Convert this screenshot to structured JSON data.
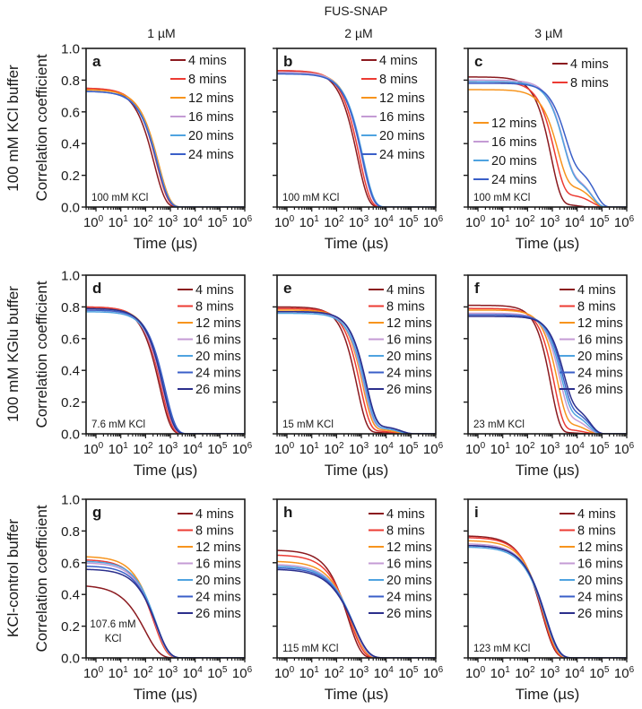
{
  "figure": {
    "title": "FUS-SNAP",
    "columns": [
      "1 µM",
      "2 µM",
      "3 µM"
    ],
    "rows": [
      "100 mM KCl buffer",
      "100 mM KGlu buffer",
      "KCl-control buffer"
    ]
  },
  "colors": {
    "4 mins": "#8b1a1f",
    "8 mins": "#ec3b33",
    "12 mins": "#f7941d",
    "16 mins": "#c49bd4",
    "20 mins": "#4fa3e0",
    "24 mins": "#3a5fc8",
    "26 mins": "#2b2f8c"
  },
  "chart_data": [
    {
      "panel": "a",
      "type": "line",
      "annotation": [
        "100 mM KCl"
      ],
      "xlabel": "Time (µs)",
      "ylabel": "Correlation coefficient",
      "xscale": "log",
      "xlim": [
        0.4,
        1000000
      ],
      "ylim": [
        0,
        1
      ],
      "grid": false,
      "yticks": [
        "0.0",
        "0.2",
        "0.4",
        "0.6",
        "0.8",
        "1.0"
      ],
      "xticks": [
        {
          "base": "10",
          "exp": "0"
        },
        {
          "base": "10",
          "exp": "1"
        },
        {
          "base": "10",
          "exp": "2"
        },
        {
          "base": "10",
          "exp": "3"
        },
        {
          "base": "10",
          "exp": "4"
        },
        {
          "base": "10",
          "exp": "5"
        },
        {
          "base": "10",
          "exp": "6"
        }
      ],
      "legend": "top-right",
      "series": [
        {
          "name": "4 mins",
          "plateau": 0.75,
          "half_decay_us": 150,
          "stretch": 0.95
        },
        {
          "name": "8 mins",
          "plateau": 0.75,
          "half_decay_us": 190,
          "stretch": 0.95
        },
        {
          "name": "12 mins",
          "plateau": 0.74,
          "half_decay_us": 230,
          "stretch": 0.95
        },
        {
          "name": "16 mins",
          "plateau": 0.73,
          "half_decay_us": 215,
          "stretch": 0.95
        },
        {
          "name": "20 mins",
          "plateau": 0.73,
          "half_decay_us": 215,
          "stretch": 0.95
        },
        {
          "name": "24 mins",
          "plateau": 0.73,
          "half_decay_us": 205,
          "stretch": 0.95
        }
      ]
    },
    {
      "panel": "b",
      "type": "line",
      "annotation": [
        "100 mM KCl"
      ],
      "xlabel": "Time (µs)",
      "xscale": "log",
      "xlim": [
        0.4,
        1000000
      ],
      "ylim": [
        0,
        1
      ],
      "grid": false,
      "xticks": [
        {
          "base": "10",
          "exp": "0"
        },
        {
          "base": "10",
          "exp": "1"
        },
        {
          "base": "10",
          "exp": "2"
        },
        {
          "base": "10",
          "exp": "3"
        },
        {
          "base": "10",
          "exp": "4"
        },
        {
          "base": "10",
          "exp": "5"
        },
        {
          "base": "10",
          "exp": "6"
        }
      ],
      "legend": "top-right",
      "series": [
        {
          "name": "4 mins",
          "plateau": 0.86,
          "half_decay_us": 480,
          "stretch": 1.0
        },
        {
          "name": "8 mins",
          "plateau": 0.86,
          "half_decay_us": 580,
          "stretch": 1.0
        },
        {
          "name": "12 mins",
          "plateau": 0.85,
          "half_decay_us": 760,
          "stretch": 1.0
        },
        {
          "name": "16 mins",
          "plateau": 0.85,
          "half_decay_us": 720,
          "stretch": 1.0
        },
        {
          "name": "20 mins",
          "plateau": 0.84,
          "half_decay_us": 820,
          "stretch": 1.0
        },
        {
          "name": "24 mins",
          "plateau": 0.84,
          "half_decay_us": 760,
          "stretch": 1.0
        }
      ]
    },
    {
      "panel": "c",
      "type": "line",
      "annotation": [
        "100 mM KCl"
      ],
      "xlabel": "Time (µs)",
      "xscale": "log",
      "xlim": [
        0.4,
        1000000
      ],
      "ylim": [
        0,
        1
      ],
      "grid": false,
      "xticks": [
        {
          "base": "10",
          "exp": "0"
        },
        {
          "base": "10",
          "exp": "1"
        },
        {
          "base": "10",
          "exp": "2"
        },
        {
          "base": "10",
          "exp": "3"
        },
        {
          "base": "10",
          "exp": "4"
        },
        {
          "base": "10",
          "exp": "5"
        },
        {
          "base": "10",
          "exp": "6"
        }
      ],
      "legend": "split: top-right and middle-left",
      "series": [
        {
          "name": "4 mins",
          "plateau": 0.82,
          "half_decay_us": 650,
          "stretch": 1.1,
          "slow_fraction": 0.02,
          "slow_half_decay_us": 8000
        },
        {
          "name": "8 mins",
          "plateau": 0.79,
          "half_decay_us": 900,
          "stretch": 1.1,
          "slow_fraction": 0.08,
          "slow_half_decay_us": 30000
        },
        {
          "name": "12 mins",
          "plateau": 0.74,
          "half_decay_us": 1200,
          "stretch": 1.1,
          "slow_fraction": 0.14,
          "slow_half_decay_us": 30000
        },
        {
          "name": "16 mins",
          "plateau": 0.8,
          "half_decay_us": 2000,
          "stretch": 1.1,
          "slow_fraction": 0.2,
          "slow_half_decay_us": 30000
        },
        {
          "name": "20 mins",
          "plateau": 0.79,
          "half_decay_us": 2000,
          "stretch": 1.1,
          "slow_fraction": 0.19,
          "slow_half_decay_us": 30000
        },
        {
          "name": "24 mins",
          "plateau": 0.78,
          "half_decay_us": 2400,
          "stretch": 1.1,
          "slow_fraction": 0.26,
          "slow_half_decay_us": 40000
        }
      ]
    },
    {
      "panel": "d",
      "type": "line",
      "annotation": [
        "7.6 mM KCl"
      ],
      "xlabel": "Time (µs)",
      "ylabel": "Correlation coefficient",
      "xscale": "log",
      "xlim": [
        0.4,
        1000000
      ],
      "ylim": [
        0,
        1
      ],
      "grid": false,
      "yticks": [
        "0.0",
        "0.2",
        "0.4",
        "0.6",
        "0.8",
        "1.0"
      ],
      "xticks": [
        {
          "base": "10",
          "exp": "0"
        },
        {
          "base": "10",
          "exp": "1"
        },
        {
          "base": "10",
          "exp": "2"
        },
        {
          "base": "10",
          "exp": "3"
        },
        {
          "base": "10",
          "exp": "4"
        },
        {
          "base": "10",
          "exp": "5"
        },
        {
          "base": "10",
          "exp": "6"
        }
      ],
      "legend": "top-right",
      "series": [
        {
          "name": "4 mins",
          "plateau": 0.8,
          "half_decay_us": 260,
          "stretch": 1.0
        },
        {
          "name": "8 mins",
          "plateau": 0.8,
          "half_decay_us": 300,
          "stretch": 1.0
        },
        {
          "name": "12 mins",
          "plateau": 0.79,
          "half_decay_us": 380,
          "stretch": 1.0
        },
        {
          "name": "16 mins",
          "plateau": 0.78,
          "half_decay_us": 340,
          "stretch": 1.0
        },
        {
          "name": "20 mins",
          "plateau": 0.77,
          "half_decay_us": 400,
          "stretch": 1.0
        },
        {
          "name": "24 mins",
          "plateau": 0.78,
          "half_decay_us": 420,
          "stretch": 1.0
        },
        {
          "name": "26 mins",
          "plateau": 0.79,
          "half_decay_us": 360,
          "stretch": 1.0
        }
      ]
    },
    {
      "panel": "e",
      "type": "line",
      "annotation": [
        "15 mM KCl"
      ],
      "xlabel": "Time (µs)",
      "xscale": "log",
      "xlim": [
        0.4,
        1000000
      ],
      "ylim": [
        0,
        1
      ],
      "grid": false,
      "xticks": [
        {
          "base": "10",
          "exp": "0"
        },
        {
          "base": "10",
          "exp": "1"
        },
        {
          "base": "10",
          "exp": "2"
        },
        {
          "base": "10",
          "exp": "3"
        },
        {
          "base": "10",
          "exp": "4"
        },
        {
          "base": "10",
          "exp": "5"
        },
        {
          "base": "10",
          "exp": "6"
        }
      ],
      "legend": "top-right",
      "series": [
        {
          "name": "4 mins",
          "plateau": 0.8,
          "half_decay_us": 480,
          "stretch": 1.1,
          "slow_fraction": 0.01,
          "slow_half_decay_us": 10000
        },
        {
          "name": "8 mins",
          "plateau": 0.79,
          "half_decay_us": 650,
          "stretch": 1.1,
          "slow_fraction": 0.02,
          "slow_half_decay_us": 15000
        },
        {
          "name": "12 mins",
          "plateau": 0.78,
          "half_decay_us": 820,
          "stretch": 1.1,
          "slow_fraction": 0.03,
          "slow_half_decay_us": 20000
        },
        {
          "name": "16 mins",
          "plateau": 0.77,
          "half_decay_us": 900,
          "stretch": 1.1,
          "slow_fraction": 0.04,
          "slow_half_decay_us": 25000
        },
        {
          "name": "20 mins",
          "plateau": 0.76,
          "half_decay_us": 1000,
          "stretch": 1.1,
          "slow_fraction": 0.04,
          "slow_half_decay_us": 25000
        },
        {
          "name": "24 mins",
          "plateau": 0.77,
          "half_decay_us": 1100,
          "stretch": 1.1,
          "slow_fraction": 0.05,
          "slow_half_decay_us": 30000
        },
        {
          "name": "26 mins",
          "plateau": 0.77,
          "half_decay_us": 1150,
          "stretch": 1.1,
          "slow_fraction": 0.05,
          "slow_half_decay_us": 30000
        }
      ]
    },
    {
      "panel": "f",
      "type": "line",
      "annotation": [
        "23 mM KCl"
      ],
      "xlabel": "Time (µs)",
      "xscale": "log",
      "xlim": [
        0.4,
        1000000
      ],
      "ylim": [
        0,
        1
      ],
      "grid": false,
      "xticks": [
        {
          "base": "10",
          "exp": "0"
        },
        {
          "base": "10",
          "exp": "1"
        },
        {
          "base": "10",
          "exp": "2"
        },
        {
          "base": "10",
          "exp": "3"
        },
        {
          "base": "10",
          "exp": "4"
        },
        {
          "base": "10",
          "exp": "5"
        },
        {
          "base": "10",
          "exp": "6"
        }
      ],
      "legend": "top-right",
      "series": [
        {
          "name": "4 mins",
          "plateau": 0.81,
          "half_decay_us": 650,
          "stretch": 1.2,
          "slow_fraction": 0.01,
          "slow_half_decay_us": 8000
        },
        {
          "name": "8 mins",
          "plateau": 0.79,
          "half_decay_us": 900,
          "stretch": 1.2,
          "slow_fraction": 0.03,
          "slow_half_decay_us": 15000
        },
        {
          "name": "12 mins",
          "plateau": 0.78,
          "half_decay_us": 1200,
          "stretch": 1.2,
          "slow_fraction": 0.07,
          "slow_half_decay_us": 18000
        },
        {
          "name": "16 mins",
          "plateau": 0.76,
          "half_decay_us": 1500,
          "stretch": 1.2,
          "slow_fraction": 0.11,
          "slow_half_decay_us": 20000
        },
        {
          "name": "20 mins",
          "plateau": 0.75,
          "half_decay_us": 1700,
          "stretch": 1.2,
          "slow_fraction": 0.14,
          "slow_half_decay_us": 22000
        },
        {
          "name": "24 mins",
          "plateau": 0.75,
          "half_decay_us": 1900,
          "stretch": 1.2,
          "slow_fraction": 0.16,
          "slow_half_decay_us": 25000
        },
        {
          "name": "26 mins",
          "plateau": 0.74,
          "half_decay_us": 2100,
          "stretch": 1.2,
          "slow_fraction": 0.19,
          "slow_half_decay_us": 25000
        }
      ]
    },
    {
      "panel": "g",
      "type": "line",
      "annotation": [
        "107.6 mM",
        "KCl"
      ],
      "xlabel": "Time (µs)",
      "ylabel": "Correlation coefficient",
      "xscale": "log",
      "xlim": [
        0.4,
        1000000
      ],
      "ylim": [
        0,
        1
      ],
      "grid": false,
      "yticks": [
        "0.0",
        "0.2",
        "0.4",
        "0.6",
        "0.8",
        "1.0"
      ],
      "xticks": [
        {
          "base": "10",
          "exp": "0"
        },
        {
          "base": "10",
          "exp": "1"
        },
        {
          "base": "10",
          "exp": "2"
        },
        {
          "base": "10",
          "exp": "3"
        },
        {
          "base": "10",
          "exp": "4"
        },
        {
          "base": "10",
          "exp": "5"
        },
        {
          "base": "10",
          "exp": "6"
        }
      ],
      "legend": "top-right",
      "series": [
        {
          "name": "4 mins",
          "plateau": 0.46,
          "half_decay_us": 60,
          "stretch": 0.75
        },
        {
          "name": "8 mins",
          "plateau": 0.62,
          "half_decay_us": 140,
          "stretch": 0.85
        },
        {
          "name": "12 mins",
          "plateau": 0.64,
          "half_decay_us": 150,
          "stretch": 0.85
        },
        {
          "name": "16 mins",
          "plateau": 0.6,
          "half_decay_us": 160,
          "stretch": 0.85
        },
        {
          "name": "20 mins",
          "plateau": 0.61,
          "half_decay_us": 170,
          "stretch": 0.85
        },
        {
          "name": "24 mins",
          "plateau": 0.58,
          "half_decay_us": 170,
          "stretch": 0.85
        },
        {
          "name": "26 mins",
          "plateau": 0.56,
          "half_decay_us": 180,
          "stretch": 0.85
        }
      ]
    },
    {
      "panel": "h",
      "type": "line",
      "annotation": [
        "115 mM KCl"
      ],
      "xlabel": "Time (µs)",
      "xscale": "log",
      "xlim": [
        0.4,
        1000000
      ],
      "ylim": [
        0,
        1
      ],
      "grid": false,
      "xticks": [
        {
          "base": "10",
          "exp": "0"
        },
        {
          "base": "10",
          "exp": "1"
        },
        {
          "base": "10",
          "exp": "2"
        },
        {
          "base": "10",
          "exp": "3"
        },
        {
          "base": "10",
          "exp": "4"
        },
        {
          "base": "10",
          "exp": "5"
        },
        {
          "base": "10",
          "exp": "6"
        }
      ],
      "legend": "top-right",
      "series": [
        {
          "name": "4 mins",
          "plateau": 0.68,
          "half_decay_us": 190,
          "stretch": 0.85
        },
        {
          "name": "8 mins",
          "plateau": 0.65,
          "half_decay_us": 220,
          "stretch": 0.8
        },
        {
          "name": "12 mins",
          "plateau": 0.61,
          "half_decay_us": 260,
          "stretch": 0.78
        },
        {
          "name": "16 mins",
          "plateau": 0.59,
          "half_decay_us": 280,
          "stretch": 0.76
        },
        {
          "name": "20 mins",
          "plateau": 0.58,
          "half_decay_us": 300,
          "stretch": 0.75
        },
        {
          "name": "24 mins",
          "plateau": 0.57,
          "half_decay_us": 300,
          "stretch": 0.74
        },
        {
          "name": "26 mins",
          "plateau": 0.56,
          "half_decay_us": 300,
          "stretch": 0.73
        }
      ]
    },
    {
      "panel": "i",
      "type": "line",
      "annotation": [
        "123 mM KCl"
      ],
      "xlabel": "Time (µs)",
      "xscale": "log",
      "xlim": [
        0.4,
        1000000
      ],
      "ylim": [
        0,
        1
      ],
      "grid": false,
      "xticks": [
        {
          "base": "10",
          "exp": "0"
        },
        {
          "base": "10",
          "exp": "1"
        },
        {
          "base": "10",
          "exp": "2"
        },
        {
          "base": "10",
          "exp": "3"
        },
        {
          "base": "10",
          "exp": "4"
        },
        {
          "base": "10",
          "exp": "5"
        },
        {
          "base": "10",
          "exp": "6"
        }
      ],
      "legend": "top-right",
      "series": [
        {
          "name": "4 mins",
          "plateau": 0.77,
          "half_decay_us": 250,
          "stretch": 0.85
        },
        {
          "name": "8 mins",
          "plateau": 0.76,
          "half_decay_us": 270,
          "stretch": 0.85
        },
        {
          "name": "12 mins",
          "plateau": 0.74,
          "half_decay_us": 300,
          "stretch": 0.85
        },
        {
          "name": "16 mins",
          "plateau": 0.72,
          "half_decay_us": 320,
          "stretch": 0.83
        },
        {
          "name": "20 mins",
          "plateau": 0.7,
          "half_decay_us": 330,
          "stretch": 0.82
        },
        {
          "name": "24 mins",
          "plateau": 0.71,
          "half_decay_us": 350,
          "stretch": 0.82
        },
        {
          "name": "26 mins",
          "plateau": 0.71,
          "half_decay_us": 340,
          "stretch": 0.82
        }
      ]
    }
  ]
}
